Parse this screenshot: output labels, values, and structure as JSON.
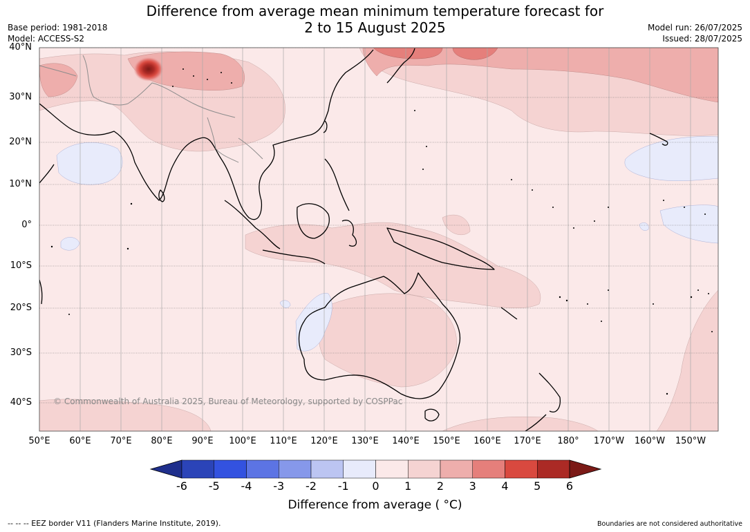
{
  "title_line1": "Difference from average mean minimum temperature forecast for",
  "title_line2": "2 to 15 August 2025",
  "base_period": "Base period: 1981-2018",
  "model": "Model: ACCESS-S2",
  "model_run": "Model run: 26/07/2025",
  "issued": "Issued: 28/07/2025",
  "copyright": "© Commonwealth of Australia 2025, Bureau of Meteorology, supported by COSPPac",
  "lat_labels": [
    "40°N",
    "30°N",
    "20°N",
    "10°N",
    "0°",
    "10°S",
    "20°S",
    "30°S",
    "40°S"
  ],
  "lon_labels": [
    "50°E",
    "60°E",
    "70°E",
    "80°E",
    "90°E",
    "100°E",
    "110°E",
    "120°E",
    "130°E",
    "140°E",
    "150°E",
    "160°E",
    "170°E",
    "180°",
    "170°W",
    "160°W",
    "150°W"
  ],
  "colorbar": {
    "ticks": [
      "-6",
      "-5",
      "-4",
      "-3",
      "-2",
      "-1",
      "0",
      "1",
      "2",
      "3",
      "4",
      "5",
      "6"
    ],
    "colors": [
      "#1f2f8c",
      "#2b44b8",
      "#3352e0",
      "#5c74e4",
      "#8698ea",
      "#bcc5f2",
      "#e8ebfb",
      "#fbe9e9",
      "#f5d3d2",
      "#eeaeac",
      "#e57f7b",
      "#d9493f",
      "#ab2a25",
      "#7b1a17"
    ],
    "label": "Difference from average ( °C)"
  },
  "footer_left": "--  --  -- EEZ border V11 (Flanders Marine Institute, 2019).",
  "footer_right": "Boundaries are not considered authoritative"
}
